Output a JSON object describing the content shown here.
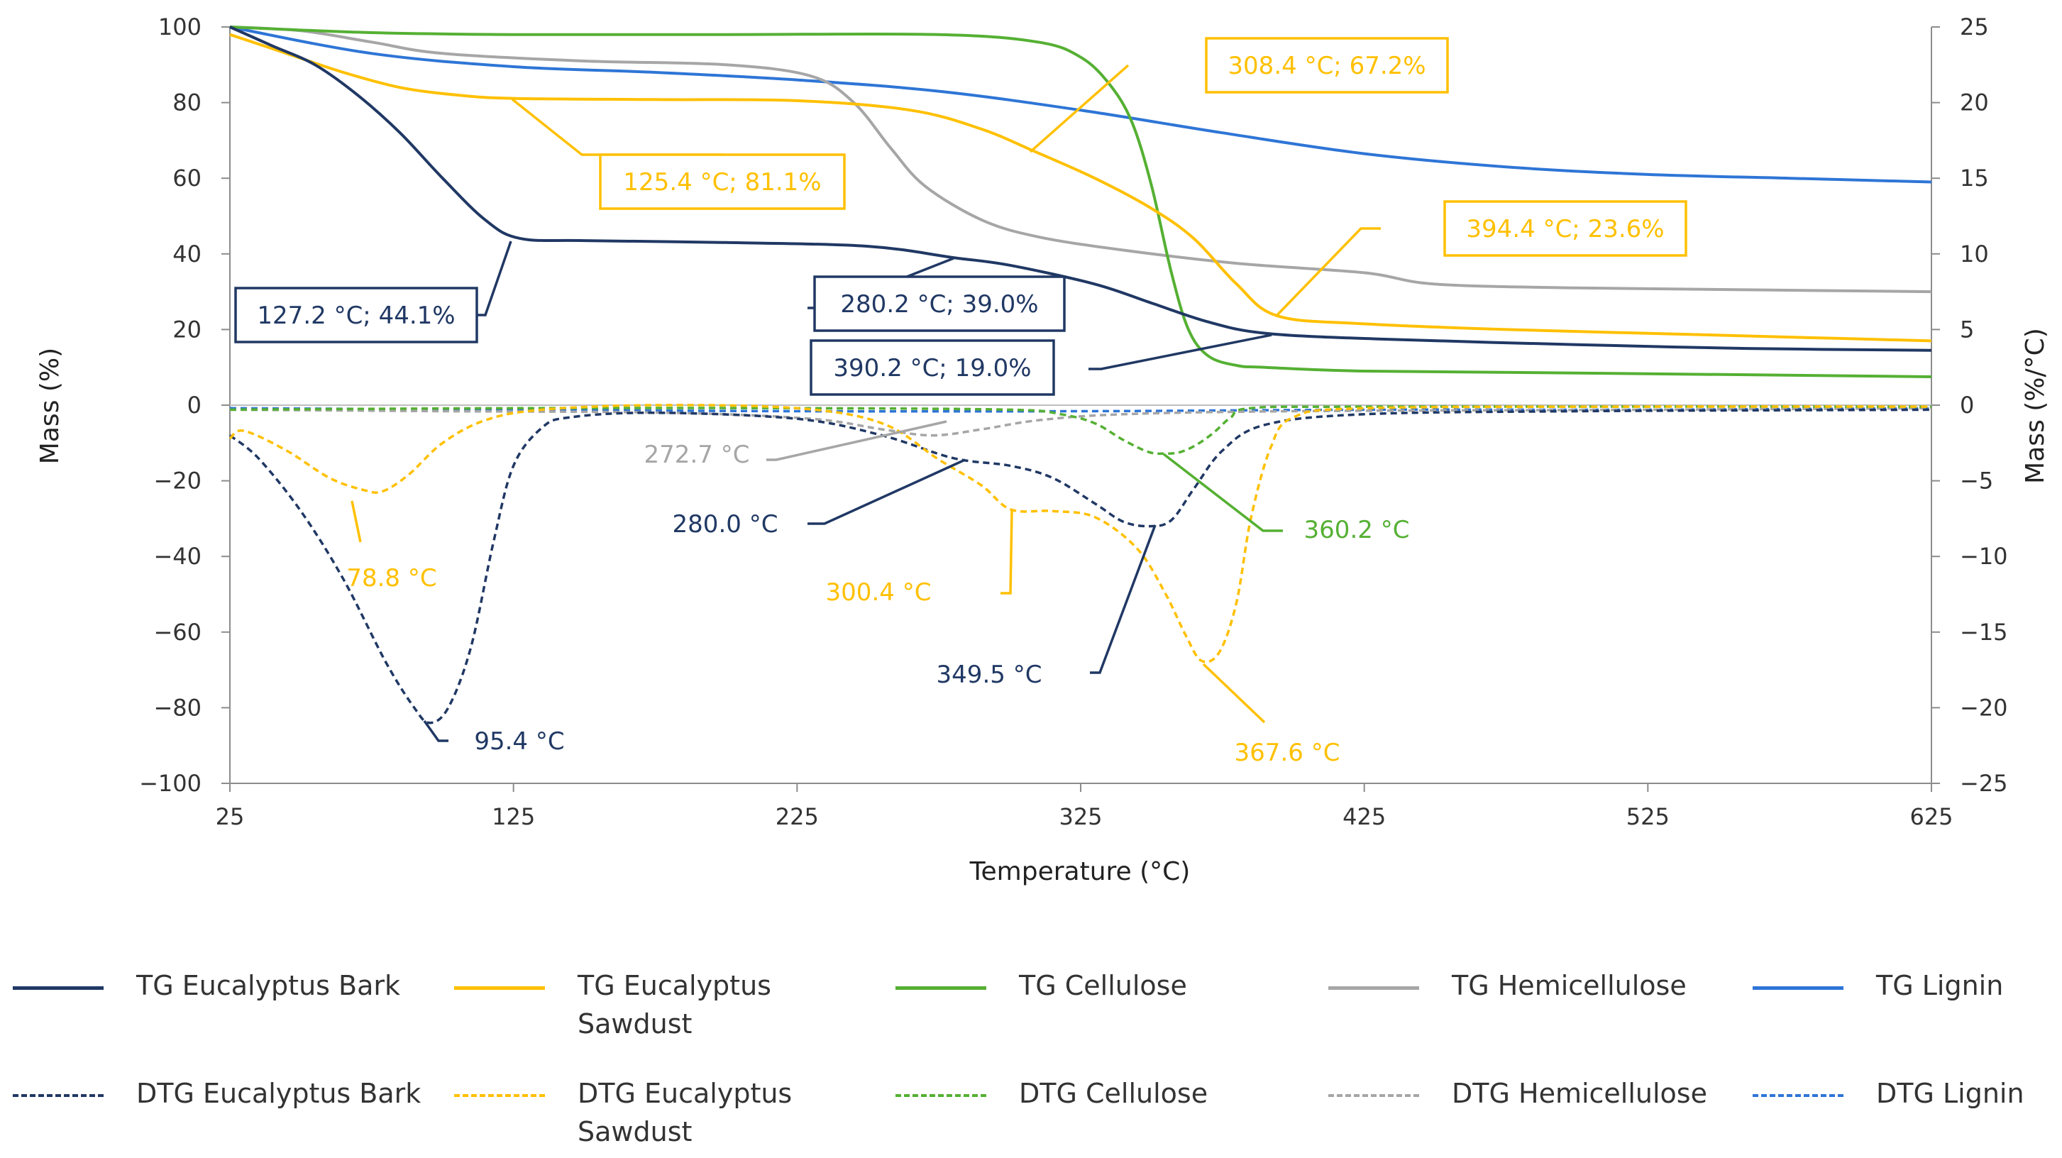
{
  "chart_data": {
    "type": "line",
    "xlabel": "Temperature (°C)",
    "ylabel": "Mass (%)",
    "y2label": "Mass (%/°C)",
    "xlim": [
      25,
      625
    ],
    "ylim": [
      -100,
      100
    ],
    "y2lim": [
      -25,
      25
    ],
    "xticks": [
      25,
      125,
      225,
      325,
      425,
      525,
      625
    ],
    "yticks": [
      100,
      80,
      60,
      40,
      20,
      0,
      -20,
      -40,
      -60,
      -80,
      -100
    ],
    "y2ticks": [
      25,
      20,
      15,
      10,
      5,
      0,
      -5,
      -10,
      -15,
      -20,
      -25
    ],
    "ytick_labels": [
      "100",
      "80",
      "60",
      "40",
      "20",
      "0",
      "−20",
      "−40",
      "−60",
      "−80",
      "−100"
    ],
    "y2tick_labels": [
      "25",
      "20",
      "15",
      "10",
      "5",
      "0",
      "−5",
      "−10",
      "−15",
      "−20",
      "−25"
    ],
    "grid": false,
    "legend_position": "bottom",
    "series": [
      {
        "name": "TG Eucalyptus Bark",
        "color": "#203864",
        "dash": "solid",
        "axis": "left",
        "x": [
          25,
          40,
          55,
          70,
          85,
          100,
          115,
          127.2,
          150,
          200,
          250,
          280.2,
          300,
          330,
          350,
          370,
          390.2,
          430,
          500,
          560,
          625
        ],
        "y": [
          100,
          95,
          90,
          82,
          72,
          60,
          49,
          44.1,
          43.5,
          43,
          42,
          39.0,
          37,
          32,
          27,
          22,
          19.0,
          17.5,
          16,
          15,
          14.5
        ]
      },
      {
        "name": "TG Eucalyptus Sawdust",
        "color": "#FFC000",
        "dash": "solid",
        "axis": "left",
        "x": [
          25,
          45,
          65,
          85,
          105,
          125.4,
          175,
          225,
          265,
          290,
          308.4,
          330,
          350,
          365,
          380,
          394.4,
          425,
          475,
          525,
          575,
          625
        ],
        "y": [
          98,
          93,
          88,
          84,
          82,
          81.1,
          80.8,
          80.5,
          78,
          73,
          67.2,
          60,
          52,
          44,
          32,
          23.6,
          21.5,
          20,
          19,
          18,
          17
        ]
      },
      {
        "name": "TG Cellulose",
        "color": "#55B033",
        "dash": "solid",
        "axis": "left",
        "x": [
          25,
          75,
          125,
          200,
          275,
          310,
          325,
          335,
          343,
          350,
          357,
          363,
          370,
          380,
          390,
          425,
          500,
          625
        ],
        "y": [
          100,
          98.5,
          98,
          98,
          98,
          96,
          92,
          85,
          75,
          58,
          35,
          20,
          13,
          10.5,
          10,
          9,
          8.5,
          7.5
        ]
      },
      {
        "name": "TG Hemicellulose",
        "color": "#A6A6A6",
        "dash": "solid",
        "axis": "left",
        "x": [
          25,
          50,
          75,
          100,
          150,
          200,
          230,
          245,
          258,
          270,
          290,
          310,
          340,
          380,
          425,
          450,
          500,
          560,
          625
        ],
        "y": [
          100,
          99,
          96,
          93,
          91,
          90,
          87,
          80,
          68,
          58,
          49,
          44.5,
          41,
          37.5,
          35,
          32,
          31,
          30.5,
          30
        ]
      },
      {
        "name": "TG Lignin",
        "color": "#2E75D6",
        "dash": "solid",
        "axis": "left",
        "x": [
          25,
          75,
          125,
          175,
          225,
          275,
          325,
          375,
          425,
          475,
          525,
          575,
          625
        ],
        "y": [
          100,
          93,
          89.5,
          88,
          86,
          83,
          78,
          72,
          66.5,
          63,
          61,
          60,
          59
        ]
      },
      {
        "name": "DTG Eucalyptus Bark",
        "color": "#203864",
        "dash": "dashed",
        "axis": "right",
        "x": [
          25,
          35,
          50,
          65,
          80,
          90,
          95.4,
          102,
          110,
          118,
          125,
          135,
          145,
          175,
          225,
          255,
          280,
          300,
          315,
          330,
          340,
          349.5,
          357,
          365,
          375,
          390,
          425,
          500,
          625
        ],
        "y": [
          -2,
          -3.5,
          -7,
          -11.5,
          -17,
          -20,
          -21.0,
          -20,
          -16,
          -9,
          -4,
          -1.5,
          -0.8,
          -0.5,
          -0.9,
          -2,
          -3.5,
          -4,
          -4.8,
          -6.5,
          -7.7,
          -8.0,
          -7.6,
          -5.5,
          -3,
          -1.3,
          -0.6,
          -0.4,
          -0.3
        ]
      },
      {
        "name": "DTG Eucalyptus Sawdust",
        "color": "#FFC000",
        "dash": "dashed",
        "axis": "right",
        "x": [
          25,
          30,
          45,
          60,
          72,
          78.8,
          88,
          100,
          115,
          135,
          175,
          225,
          255,
          275,
          290,
          300.4,
          315,
          330,
          345,
          355,
          362,
          367.6,
          374,
          380,
          385,
          392,
          400,
          425,
          525,
          625
        ],
        "y": [
          -2.2,
          -1.7,
          -3,
          -4.8,
          -5.6,
          -5.7,
          -4.6,
          -2.5,
          -1,
          -0.3,
          0,
          -0.2,
          -1.2,
          -3.6,
          -5.3,
          -6.9,
          -7,
          -7.4,
          -9.5,
          -12.5,
          -15.2,
          -16.9,
          -16.3,
          -13,
          -7.5,
          -2.8,
          -0.8,
          -0.2,
          -0.1,
          -0.1
        ]
      },
      {
        "name": "DTG Cellulose",
        "color": "#55B033",
        "dash": "dashed",
        "axis": "right",
        "x": [
          25,
          125,
          225,
          300,
          318,
          330,
          340,
          349,
          355,
          360.2,
          366,
          372,
          378,
          385,
          425,
          625
        ],
        "y": [
          -0.3,
          -0.2,
          -0.2,
          -0.3,
          -0.6,
          -1.2,
          -2.3,
          -3.1,
          -3.2,
          -3.1,
          -2.6,
          -1.8,
          -0.8,
          -0.2,
          -0.1,
          -0.1
        ]
      },
      {
        "name": "DTG Hemicellulose",
        "color": "#A6A6A6",
        "dash": "dashed",
        "axis": "right",
        "x": [
          25,
          100,
          180,
          230,
          255,
          272.7,
          290,
          310,
          340,
          400,
          525,
          625
        ],
        "y": [
          -0.3,
          -0.4,
          -0.5,
          -0.9,
          -1.6,
          -2.0,
          -1.6,
          -1.0,
          -0.6,
          -0.4,
          -0.3,
          -0.2
        ]
      },
      {
        "name": "DTG Lignin",
        "color": "#2E75D6",
        "dash": "dashed",
        "axis": "right",
        "x": [
          25,
          125,
          225,
          325,
          425,
          525,
          625
        ],
        "y": [
          -0.2,
          -0.3,
          -0.4,
          -0.4,
          -0.3,
          -0.3,
          -0.2
        ]
      }
    ],
    "annotations": [
      {
        "text": "125.4 °C; 81.1%",
        "color": "#FFC000",
        "boxed": true,
        "x": 125.4,
        "y": 81.1,
        "axis": "left"
      },
      {
        "text": "308.4 °C; 67.2%",
        "color": "#FFC000",
        "boxed": true,
        "x": 308.4,
        "y": 67.2,
        "axis": "left"
      },
      {
        "text": "394.4 °C; 23.6%",
        "color": "#FFC000",
        "boxed": true,
        "x": 394.4,
        "y": 23.6,
        "axis": "left"
      },
      {
        "text": "127.2 °C; 44.1%",
        "color": "#203864",
        "boxed": true,
        "x": 127.2,
        "y": 44.1,
        "axis": "left"
      },
      {
        "text": "280.2 °C; 39.0%",
        "color": "#203864",
        "boxed": true,
        "x": 280.2,
        "y": 39.0,
        "axis": "left"
      },
      {
        "text": "390.2 °C; 19.0%",
        "color": "#203864",
        "boxed": true,
        "x": 390.2,
        "y": 19.0,
        "axis": "left"
      },
      {
        "text": "272.7 °C",
        "color": "#A6A6A6",
        "boxed": false,
        "x": 272.7,
        "y": -2.0,
        "axis": "right"
      },
      {
        "text": "280.0 °C",
        "color": "#203864",
        "boxed": false,
        "x": 280.0,
        "y": -3.5,
        "axis": "right"
      },
      {
        "text": "78.8 °C",
        "color": "#FFC000",
        "boxed": false,
        "x": 78.8,
        "y": -5.7,
        "axis": "right"
      },
      {
        "text": "300.4 °C",
        "color": "#FFC000",
        "boxed": false,
        "x": 300.4,
        "y": -6.9,
        "axis": "right"
      },
      {
        "text": "360.2 °C",
        "color": "#55B033",
        "boxed": false,
        "x": 360.2,
        "y": -3.1,
        "axis": "right"
      },
      {
        "text": "349.5 °C",
        "color": "#203864",
        "boxed": false,
        "x": 349.5,
        "y": -8.0,
        "axis": "right"
      },
      {
        "text": "95.4 °C",
        "color": "#203864",
        "boxed": false,
        "x": 95.4,
        "y": -21.0,
        "axis": "right"
      },
      {
        "text": "367.6 °C",
        "color": "#FFC000",
        "boxed": false,
        "x": 367.6,
        "y": -16.9,
        "axis": "right"
      }
    ],
    "legend": [
      {
        "label": "TG Eucalyptus Bark",
        "color": "#203864",
        "dash": "solid"
      },
      {
        "label": "TG Eucalyptus\nSawdust",
        "color": "#FFC000",
        "dash": "solid"
      },
      {
        "label": "TG Cellulose",
        "color": "#55B033",
        "dash": "solid"
      },
      {
        "label": "TG Hemicellulose",
        "color": "#A6A6A6",
        "dash": "solid"
      },
      {
        "label": "TG Lignin",
        "color": "#2E75D6",
        "dash": "solid"
      },
      {
        "label": "DTG Eucalyptus Bark",
        "color": "#203864",
        "dash": "dashed"
      },
      {
        "label": "DTG Eucalyptus\nSawdust",
        "color": "#FFC000",
        "dash": "dashed"
      },
      {
        "label": "DTG Cellulose",
        "color": "#55B033",
        "dash": "dashed"
      },
      {
        "label": "DTG Hemicellulose",
        "color": "#A6A6A6",
        "dash": "dashed"
      },
      {
        "label": "DTG Lignin",
        "color": "#2E75D6",
        "dash": "dashed"
      }
    ]
  }
}
